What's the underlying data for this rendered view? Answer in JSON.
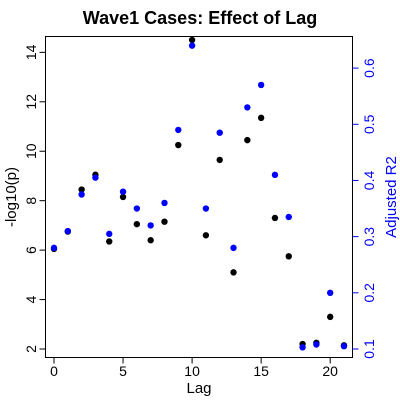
{
  "chart_data": {
    "type": "scatter",
    "title": "Wave1 Cases: Effect of Lag",
    "xlabel": "Lag",
    "ylabel_left": "-log10(p)",
    "ylabel_right": "Adjusted R2",
    "xlim": [
      0,
      21
    ],
    "ylim_left": [
      2,
      14.5
    ],
    "ylim_right": [
      0.1,
      0.65
    ],
    "x_ticks": [
      0,
      5,
      10,
      15,
      20
    ],
    "y_left_ticks": [
      2,
      4,
      6,
      8,
      10,
      12,
      14
    ],
    "y_right_ticks": [
      0.1,
      0.2,
      0.3,
      0.4,
      0.5,
      0.6
    ],
    "grid": false,
    "series": [
      {
        "axis": "left",
        "color": "#000000",
        "x": [
          0,
          1,
          2,
          3,
          4,
          5,
          6,
          7,
          8,
          9,
          10,
          11,
          12,
          13,
          14,
          15,
          16,
          17,
          18,
          19,
          20,
          21
        ],
        "y": [
          6.05,
          6.75,
          8.45,
          9.05,
          6.35,
          8.15,
          7.05,
          6.4,
          7.15,
          10.25,
          14.5,
          6.6,
          9.65,
          5.1,
          10.45,
          11.35,
          7.3,
          5.75,
          2.2,
          2.25,
          3.3,
          2.15
        ]
      },
      {
        "axis": "right",
        "color": "#0000ff",
        "x": [
          0,
          1,
          2,
          3,
          4,
          5,
          6,
          7,
          8,
          9,
          10,
          11,
          12,
          13,
          14,
          15,
          16,
          17,
          18,
          19,
          20,
          21
        ],
        "y": [
          0.28,
          0.31,
          0.375,
          0.405,
          0.305,
          0.38,
          0.35,
          0.32,
          0.36,
          0.49,
          0.64,
          0.35,
          0.485,
          0.28,
          0.53,
          0.57,
          0.41,
          0.335,
          0.103,
          0.108,
          0.2,
          0.105
        ]
      }
    ]
  }
}
